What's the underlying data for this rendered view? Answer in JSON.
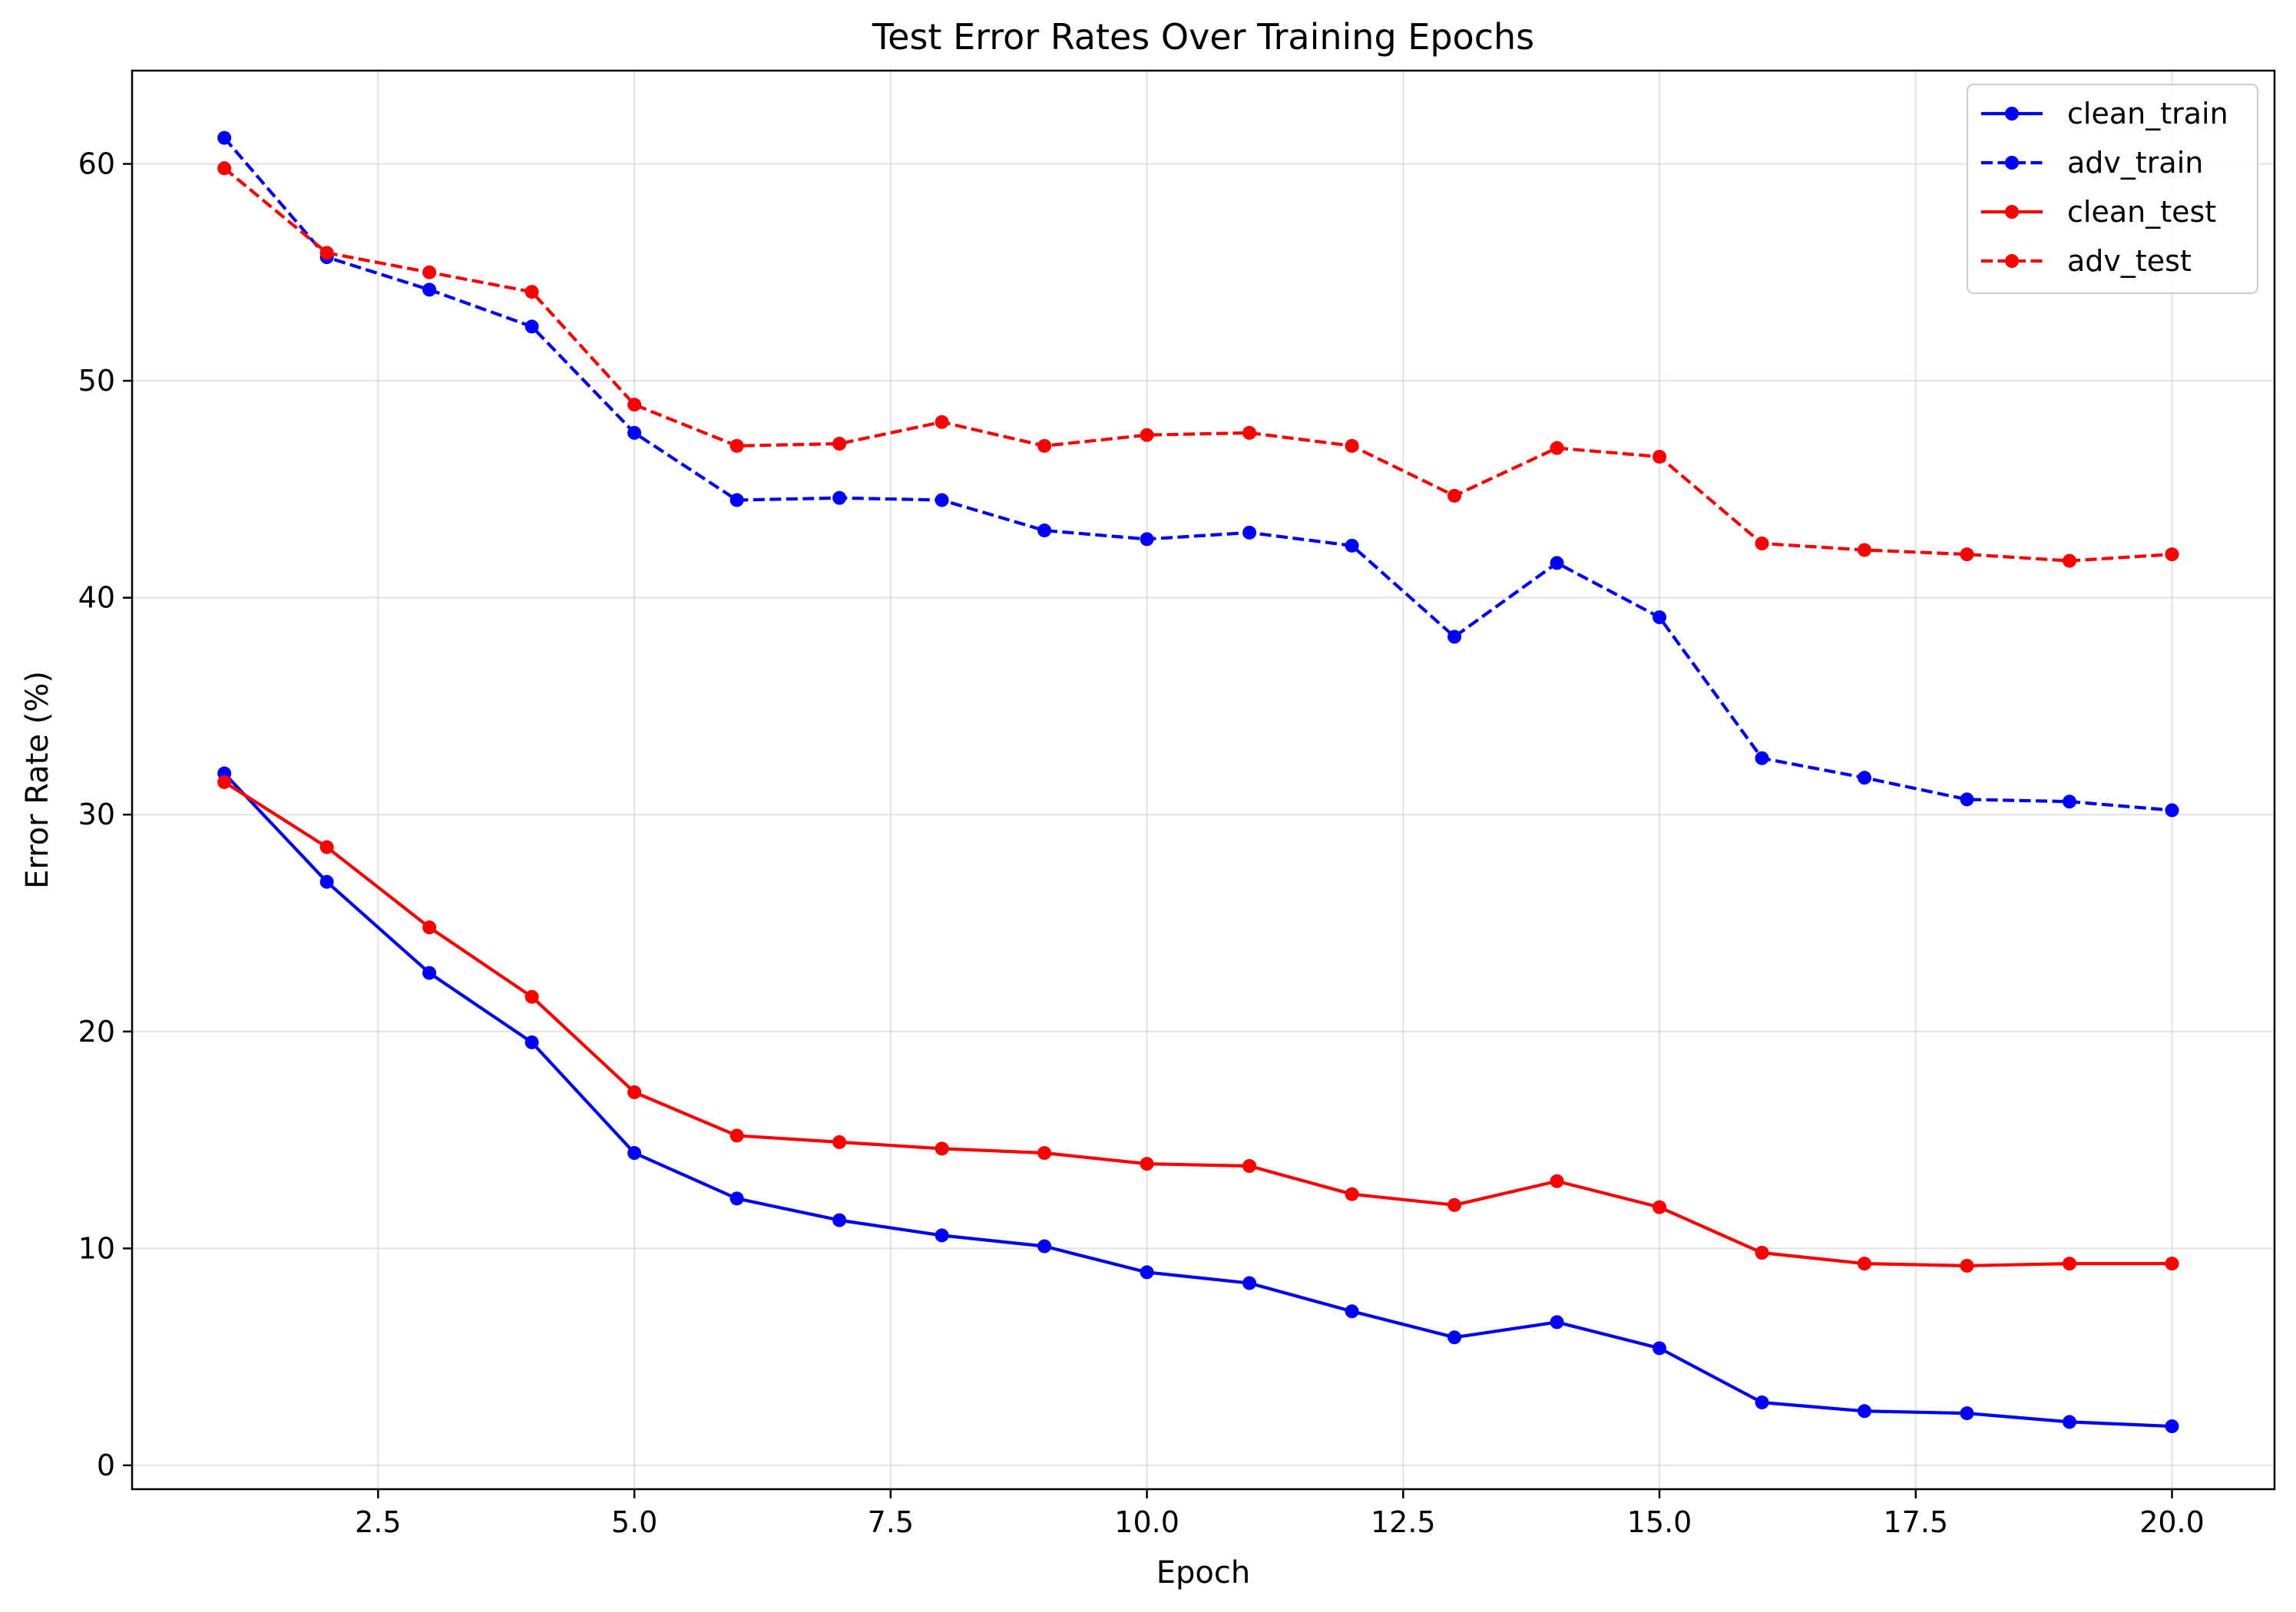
{
  "chart_data": {
    "type": "line",
    "title": "Test Error Rates Over Training Epochs",
    "xlabel": "Epoch",
    "ylabel": "Error Rate (%)",
    "xlim": [
      0.1,
      21.0
    ],
    "ylim": [
      -1.1,
      64.3
    ],
    "xticks": [
      2.5,
      5.0,
      7.5,
      10.0,
      12.5,
      15.0,
      17.5,
      20.0
    ],
    "xtick_labels": [
      "2.5",
      "5.0",
      "7.5",
      "10.0",
      "12.5",
      "15.0",
      "17.5",
      "20.0"
    ],
    "yticks": [
      0,
      10,
      20,
      30,
      40,
      50,
      60
    ],
    "ytick_labels": [
      "0",
      "10",
      "20",
      "30",
      "40",
      "50",
      "60"
    ],
    "grid": true,
    "legend_position": "top-right",
    "x": [
      1,
      2,
      3,
      4,
      5,
      6,
      7,
      8,
      9,
      10,
      11,
      12,
      13,
      14,
      15,
      16,
      17,
      18,
      19,
      20
    ],
    "series": [
      {
        "name": "clean_train",
        "color": "#0000ff",
        "linestyle": "solid",
        "values": [
          31.9,
          26.9,
          22.7,
          19.5,
          14.4,
          12.3,
          11.3,
          10.6,
          10.1,
          8.9,
          8.4,
          7.1,
          5.9,
          6.6,
          5.4,
          2.9,
          2.5,
          2.4,
          2.0,
          1.8
        ]
      },
      {
        "name": "adv_train",
        "color": "#0000ff",
        "linestyle": "dashed",
        "values": [
          61.2,
          55.7,
          54.2,
          52.5,
          47.6,
          44.5,
          44.6,
          44.5,
          43.1,
          42.7,
          43.0,
          42.4,
          38.2,
          41.6,
          39.1,
          32.6,
          31.7,
          30.7,
          30.6,
          30.2
        ]
      },
      {
        "name": "clean_test",
        "color": "#ff0000",
        "linestyle": "solid",
        "values": [
          31.5,
          28.5,
          24.8,
          21.6,
          17.2,
          15.2,
          14.9,
          14.6,
          14.4,
          13.9,
          13.8,
          12.5,
          12.0,
          13.1,
          11.9,
          9.8,
          9.3,
          9.2,
          9.3,
          9.3
        ]
      },
      {
        "name": "adv_test",
        "color": "#ff0000",
        "linestyle": "dashed",
        "values": [
          59.8,
          55.9,
          55.0,
          54.1,
          48.9,
          47.0,
          47.1,
          48.1,
          47.0,
          47.5,
          47.6,
          47.0,
          44.7,
          46.9,
          46.5,
          42.5,
          42.2,
          42.0,
          41.7,
          42.0
        ]
      }
    ]
  }
}
